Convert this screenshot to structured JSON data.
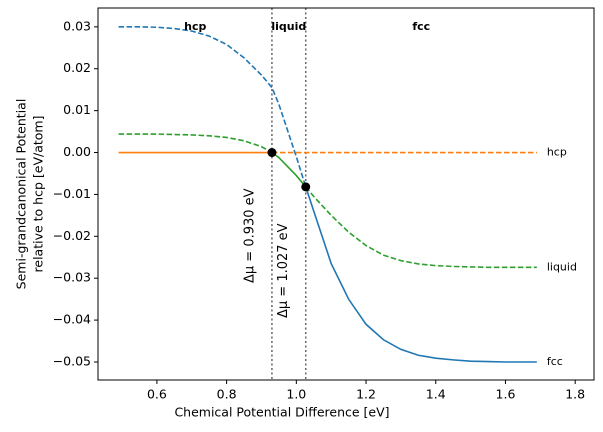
{
  "chart_data": {
    "type": "line",
    "xlabel": "Chemical Potential Difference [eV]",
    "ylabel": [
      "Semi-grandcanonical Potential",
      "relative to hcp [eV/atom]"
    ],
    "x": [
      0.49,
      0.55,
      0.6,
      0.65,
      0.7,
      0.75,
      0.8,
      0.85,
      0.9,
      0.93,
      0.95,
      1.0,
      1.027,
      1.05,
      1.1,
      1.15,
      1.2,
      1.25,
      1.3,
      1.35,
      1.4,
      1.45,
      1.5,
      1.55,
      1.6,
      1.65,
      1.69
    ],
    "series": [
      {
        "name": "fcc",
        "color": "#1f77b4",
        "stable_x": [
          1.027,
          1.69
        ],
        "values": [
          0.03,
          0.03,
          0.0299,
          0.0296,
          0.029,
          0.0278,
          0.0258,
          0.0226,
          0.0185,
          0.0155,
          0.0115,
          -0.001,
          -0.0082,
          -0.014,
          -0.0265,
          -0.035,
          -0.041,
          -0.0447,
          -0.047,
          -0.0484,
          -0.0491,
          -0.0495,
          -0.0498,
          -0.0499,
          -0.05,
          -0.05,
          -0.05
        ]
      },
      {
        "name": "hcp",
        "color": "#ff7f0e",
        "stable_x": [
          0.49,
          0.93
        ],
        "values": [
          0,
          0,
          0,
          0,
          0,
          0,
          0,
          0,
          0,
          0,
          0,
          0,
          0,
          0,
          0,
          0,
          0,
          0,
          0,
          0,
          0,
          0,
          0,
          0,
          0,
          0,
          0
        ]
      },
      {
        "name": "liquid",
        "color": "#2ca02c",
        "stable_x": [
          0.93,
          1.027
        ],
        "values": [
          0.0044,
          0.0044,
          0.0044,
          0.0043,
          0.0042,
          0.004,
          0.0036,
          0.0028,
          0.0014,
          0,
          -0.0012,
          -0.0055,
          -0.0082,
          -0.0105,
          -0.015,
          -0.019,
          -0.0222,
          -0.0245,
          -0.0258,
          -0.0266,
          -0.027,
          -0.0272,
          -0.0273,
          -0.0274,
          -0.0274,
          -0.0274,
          -0.0274
        ]
      }
    ],
    "transitions": [
      {
        "x": 0.93,
        "y": 0,
        "label": "Δμ = 0.930 eV"
      },
      {
        "x": 1.027,
        "y": -0.0082,
        "label": "Δμ = 1.027 eV"
      }
    ],
    "xlim": [
      0.431,
      1.854
    ],
    "ylim": [
      -0.0543,
      0.0345
    ],
    "xticks": [
      0.6,
      0.8,
      {
        "value": 1.0,
        "label": "1.0"
      },
      1.2,
      1.4,
      1.6,
      1.8
    ],
    "yticks": [
      {
        "value": -0.05,
        "label": "−0.05"
      },
      {
        "value": -0.04,
        "label": "−0.04"
      },
      {
        "value": -0.03,
        "label": "−0.03"
      },
      {
        "value": -0.02,
        "label": "−0.02"
      },
      {
        "value": -0.01,
        "label": "−0.01"
      },
      {
        "value": 0,
        "label": "0.00"
      },
      0.01,
      0.02,
      0.03
    ],
    "grid": false
  }
}
